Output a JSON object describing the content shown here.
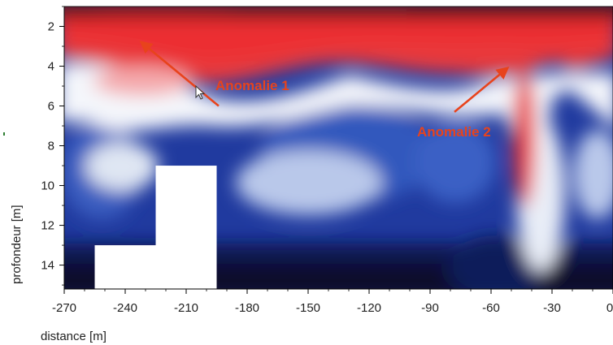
{
  "chart_data": {
    "type": "heatmap",
    "title": "",
    "xlabel": "distance [m]",
    "ylabel": "profondeur [m]",
    "xlim": [
      -270,
      0
    ],
    "ylim": [
      1,
      15.2
    ],
    "y_inverted": true,
    "x_ticks": [
      -270,
      -240,
      -210,
      -180,
      -150,
      -120,
      -90,
      -60,
      -30,
      0
    ],
    "y_ticks": [
      2,
      4,
      6,
      8,
      10,
      12,
      14
    ],
    "grid": false,
    "colormap": [
      "#0a0f2a",
      "#1b2a8f",
      "#3d5fc4",
      "#dfe6f3",
      "#ffffff",
      "#f6c2c4",
      "#ee3a3d",
      "#4a0d0d"
    ],
    "masked_regions": [
      {
        "x": [
          -225,
          -195
        ],
        "y": [
          9,
          15.2
        ]
      },
      {
        "x": [
          -255,
          -225
        ],
        "y": [
          13,
          15.2
        ]
      }
    ],
    "annotations": [
      {
        "text": "Anomalie 1",
        "arrow_tail": [
          -194,
          6
        ],
        "arrow_head": [
          -232,
          2.8
        ]
      },
      {
        "text": "Anomalie 2",
        "arrow_tail": [
          -78,
          6.3
        ],
        "arrow_head": [
          -52,
          4.1
        ]
      }
    ]
  }
}
